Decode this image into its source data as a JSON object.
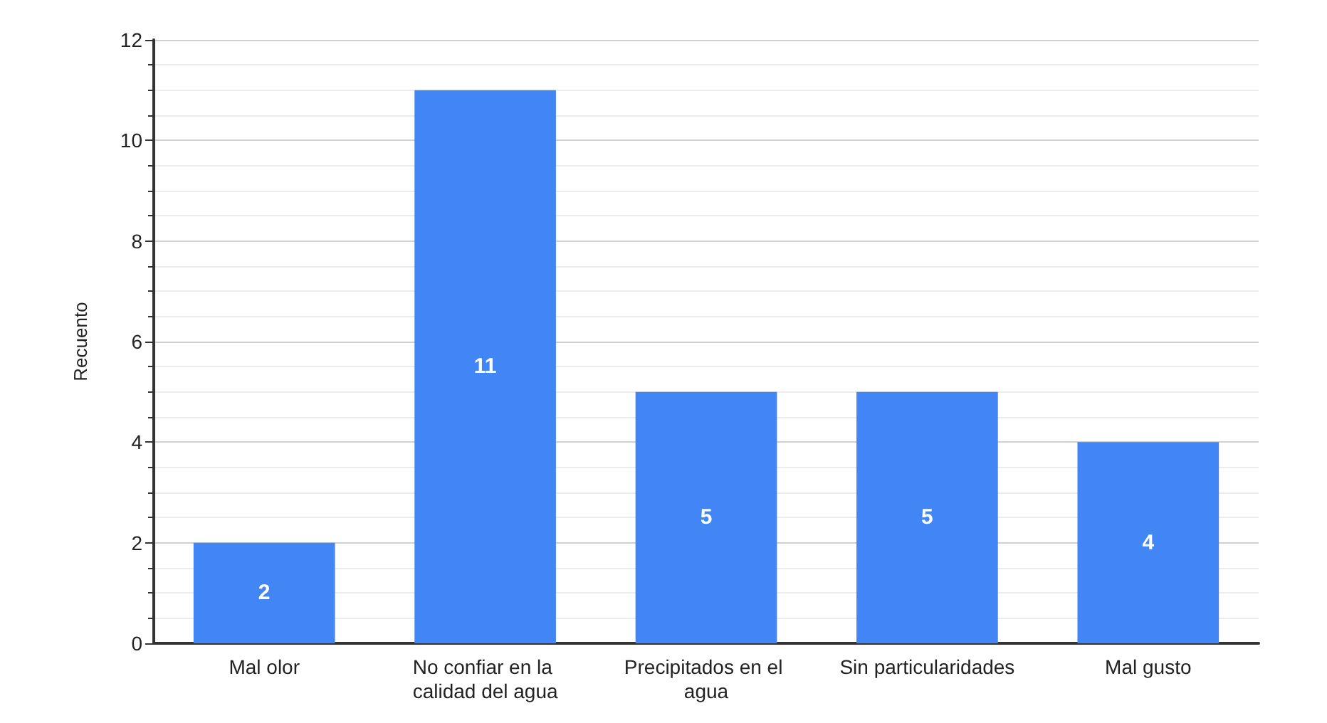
{
  "chart_data": {
    "type": "bar",
    "ylabel": "Recuento",
    "categories": [
      "Mal olor",
      "No confiar en la calidad del agua",
      "Precipitados en el agua",
      "Sin particularidades",
      "Mal gusto"
    ],
    "values": [
      2,
      11,
      5,
      5,
      4
    ],
    "color": "#4285f4",
    "ylim": [
      0,
      12
    ],
    "yticks": [
      0,
      2,
      4,
      6,
      8,
      10,
      12
    ],
    "grid": true,
    "data_labels": true
  }
}
